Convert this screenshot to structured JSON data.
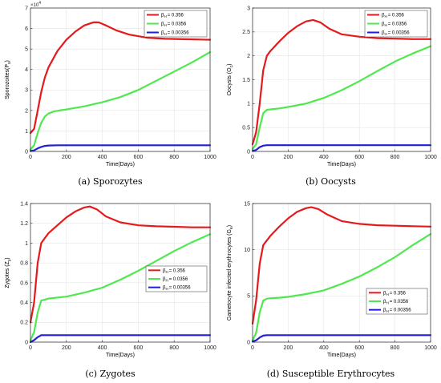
{
  "figure": {
    "captions": [
      "(a) Sporozytes",
      "(b) Oocysts",
      "(c) Zygotes",
      "(d) Susceptible Erythrocytes"
    ]
  },
  "colors": {
    "red": "#e41a1c",
    "green": "#4fe84f",
    "blue": "#1f1fd6",
    "grid": "#e6e6e6",
    "axis": "#262626"
  },
  "chart_data": [
    {
      "type": "line",
      "xlabel": "Time(Days)",
      "ylabel": "Sporozoites(P",
      "ylabel_sub": "s",
      "exponent": "×10",
      "exponent_power": "4",
      "xlim": [
        0,
        1000
      ],
      "ylim": [
        0,
        7
      ],
      "xticks": [
        0,
        200,
        400,
        600,
        800,
        1000
      ],
      "yticks": [
        0,
        1,
        2,
        3,
        4,
        5,
        6,
        7
      ],
      "legend_position": "top-right",
      "series": [
        {
          "name": "β_H = 0.356",
          "sym": "β",
          "sub": "H",
          "val": "= 0.356",
          "color_key": "red",
          "x": [
            0,
            20,
            40,
            60,
            80,
            100,
            150,
            200,
            250,
            300,
            350,
            380,
            420,
            480,
            550,
            650,
            750,
            850,
            1000
          ],
          "y": [
            0.9,
            1.1,
            2.0,
            2.9,
            3.6,
            4.1,
            4.9,
            5.45,
            5.85,
            6.15,
            6.3,
            6.3,
            6.15,
            5.9,
            5.7,
            5.55,
            5.5,
            5.48,
            5.45
          ]
        },
        {
          "name": "β_H = 0.0356",
          "sym": "β",
          "sub": "H",
          "val": "= 0.0356",
          "color_key": "green",
          "x": [
            0,
            20,
            40,
            60,
            80,
            100,
            130,
            160,
            200,
            300,
            400,
            500,
            600,
            700,
            800,
            900,
            1000
          ],
          "y": [
            0.1,
            0.3,
            0.9,
            1.4,
            1.7,
            1.85,
            1.95,
            2.0,
            2.05,
            2.2,
            2.4,
            2.65,
            3.0,
            3.45,
            3.9,
            4.35,
            4.85
          ]
        },
        {
          "name": "β_H = 0.00356",
          "sym": "β",
          "sub": "H",
          "val": "= 0.00356",
          "color_key": "blue",
          "x": [
            0,
            20,
            40,
            60,
            80,
            100,
            150,
            200,
            400,
            600,
            800,
            1000
          ],
          "y": [
            0.02,
            0.05,
            0.15,
            0.22,
            0.27,
            0.29,
            0.3,
            0.3,
            0.3,
            0.3,
            0.3,
            0.3
          ]
        }
      ]
    },
    {
      "type": "line",
      "xlabel": "Time(Days)",
      "ylabel": "Oocysts (O",
      "ylabel_sub": "c",
      "xlim": [
        0,
        1000
      ],
      "ylim": [
        0,
        3
      ],
      "xticks": [
        0,
        200,
        400,
        600,
        800,
        1000
      ],
      "yticks": [
        0,
        0.5,
        1,
        1.5,
        2,
        2.5,
        3
      ],
      "legend_position": "top-right",
      "series": [
        {
          "name": "β_H = 0.356",
          "sym": "β",
          "sub": "H",
          "val": "= 0.356",
          "color_key": "red",
          "x": [
            0,
            20,
            40,
            60,
            80,
            100,
            150,
            200,
            250,
            300,
            340,
            380,
            430,
            500,
            600,
            700,
            800,
            900,
            1000
          ],
          "y": [
            0.15,
            0.4,
            1.0,
            1.7,
            2.0,
            2.1,
            2.3,
            2.48,
            2.62,
            2.72,
            2.75,
            2.7,
            2.57,
            2.45,
            2.4,
            2.37,
            2.36,
            2.35,
            2.35
          ]
        },
        {
          "name": "β_H = 0.0356",
          "sym": "β",
          "sub": "H",
          "val": "= 0.0356",
          "color_key": "green",
          "x": [
            0,
            20,
            40,
            60,
            80,
            100,
            150,
            200,
            300,
            400,
            500,
            600,
            700,
            800,
            900,
            1000
          ],
          "y": [
            0.05,
            0.15,
            0.5,
            0.8,
            0.87,
            0.88,
            0.9,
            0.93,
            1.0,
            1.12,
            1.28,
            1.47,
            1.68,
            1.88,
            2.05,
            2.2
          ]
        },
        {
          "name": "β_H = 0.00356",
          "sym": "β",
          "sub": "H",
          "val": "= 0.00356",
          "color_key": "blue",
          "x": [
            0,
            20,
            40,
            60,
            80,
            100,
            200,
            400,
            600,
            800,
            1000
          ],
          "y": [
            0.01,
            0.03,
            0.09,
            0.12,
            0.13,
            0.13,
            0.13,
            0.13,
            0.13,
            0.13,
            0.13
          ]
        }
      ]
    },
    {
      "type": "line",
      "xlabel": "Time(Days)",
      "ylabel": "Zygotes (Z",
      "ylabel_sub": "y",
      "xlim": [
        0,
        1000
      ],
      "ylim": [
        0,
        1.4
      ],
      "xticks": [
        0,
        200,
        400,
        600,
        800,
        1000
      ],
      "yticks": [
        0,
        0.2,
        0.4,
        0.6,
        0.8,
        1,
        1.2,
        1.4
      ],
      "legend_position": "right",
      "series": [
        {
          "name": "β_H = 0.356",
          "sym": "β",
          "sub": "H",
          "val": "= 0.356",
          "color_key": "red",
          "x": [
            0,
            20,
            40,
            60,
            80,
            100,
            150,
            200,
            250,
            300,
            330,
            370,
            420,
            500,
            600,
            700,
            800,
            900,
            1000
          ],
          "y": [
            0.2,
            0.4,
            0.8,
            1.0,
            1.05,
            1.1,
            1.18,
            1.26,
            1.32,
            1.36,
            1.37,
            1.34,
            1.27,
            1.21,
            1.18,
            1.17,
            1.165,
            1.16,
            1.16
          ]
        },
        {
          "name": "β_H = 0.0356",
          "sym": "β",
          "sub": "H",
          "val": "= 0.0356",
          "color_key": "green",
          "x": [
            0,
            20,
            40,
            60,
            80,
            100,
            150,
            200,
            300,
            400,
            500,
            600,
            700,
            800,
            900,
            1000
          ],
          "y": [
            0.02,
            0.1,
            0.3,
            0.42,
            0.43,
            0.44,
            0.45,
            0.46,
            0.5,
            0.55,
            0.63,
            0.72,
            0.82,
            0.92,
            1.01,
            1.09
          ]
        },
        {
          "name": "β_H = 0.00356",
          "sym": "β",
          "sub": "H",
          "val": "= 0.00356",
          "color_key": "blue",
          "x": [
            0,
            20,
            40,
            60,
            80,
            100,
            200,
            400,
            600,
            800,
            1000
          ],
          "y": [
            0.0,
            0.02,
            0.05,
            0.07,
            0.07,
            0.07,
            0.07,
            0.07,
            0.07,
            0.07,
            0.07
          ]
        }
      ]
    },
    {
      "type": "line",
      "xlabel": "Time(Days)",
      "ylabel": "Gametocyte infected erythrocytes (G",
      "ylabel_sub": "e",
      "xlim": [
        0,
        1000
      ],
      "ylim": [
        0,
        15
      ],
      "xticks": [
        0,
        200,
        400,
        600,
        800,
        1000
      ],
      "yticks": [
        0,
        5,
        10,
        15
      ],
      "legend_position": "right",
      "series": [
        {
          "name": "β_H = 0.356",
          "sym": "β",
          "sub": "H",
          "val": "= 0.356",
          "color_key": "red",
          "x": [
            0,
            20,
            40,
            60,
            80,
            100,
            150,
            200,
            250,
            300,
            330,
            370,
            420,
            500,
            600,
            700,
            800,
            900,
            1000
          ],
          "y": [
            2.0,
            4.5,
            8.5,
            10.5,
            11.0,
            11.5,
            12.5,
            13.4,
            14.1,
            14.5,
            14.6,
            14.4,
            13.8,
            13.1,
            12.8,
            12.65,
            12.6,
            12.55,
            12.5
          ]
        },
        {
          "name": "β_H = 0.0356",
          "sym": "β",
          "sub": "H",
          "val": "= 0.0356",
          "color_key": "green",
          "x": [
            0,
            20,
            40,
            60,
            80,
            100,
            150,
            200,
            300,
            400,
            500,
            600,
            700,
            800,
            900,
            1000
          ],
          "y": [
            0.2,
            1.0,
            3.2,
            4.5,
            4.7,
            4.75,
            4.8,
            4.9,
            5.2,
            5.6,
            6.3,
            7.1,
            8.1,
            9.2,
            10.5,
            11.7
          ]
        },
        {
          "name": "β_H = 0.00356",
          "sym": "β",
          "sub": "H",
          "val": "= 0.00356",
          "color_key": "blue",
          "x": [
            0,
            20,
            40,
            60,
            80,
            100,
            200,
            400,
            600,
            800,
            1000
          ],
          "y": [
            0.05,
            0.2,
            0.5,
            0.7,
            0.75,
            0.75,
            0.75,
            0.75,
            0.75,
            0.75,
            0.75
          ]
        }
      ]
    }
  ]
}
